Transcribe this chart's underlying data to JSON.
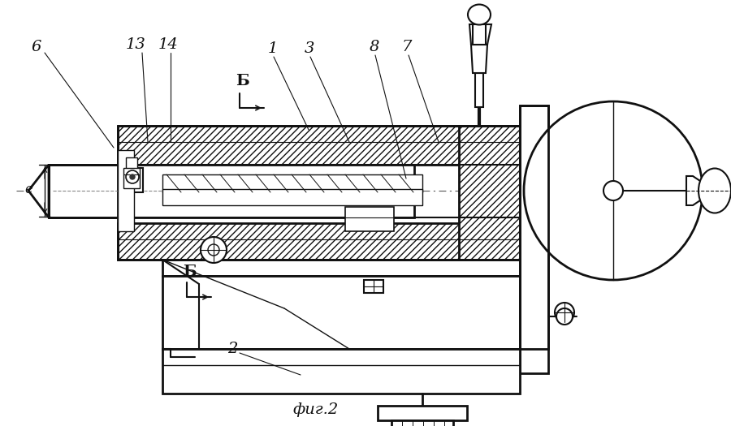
{
  "bg_color": "#ffffff",
  "lc": "#111111",
  "figsize": [
    9.0,
    5.25
  ],
  "dpi": 100,
  "title": "фиг.2",
  "xlim": [
    0,
    900
  ],
  "ylim": [
    0,
    525
  ]
}
